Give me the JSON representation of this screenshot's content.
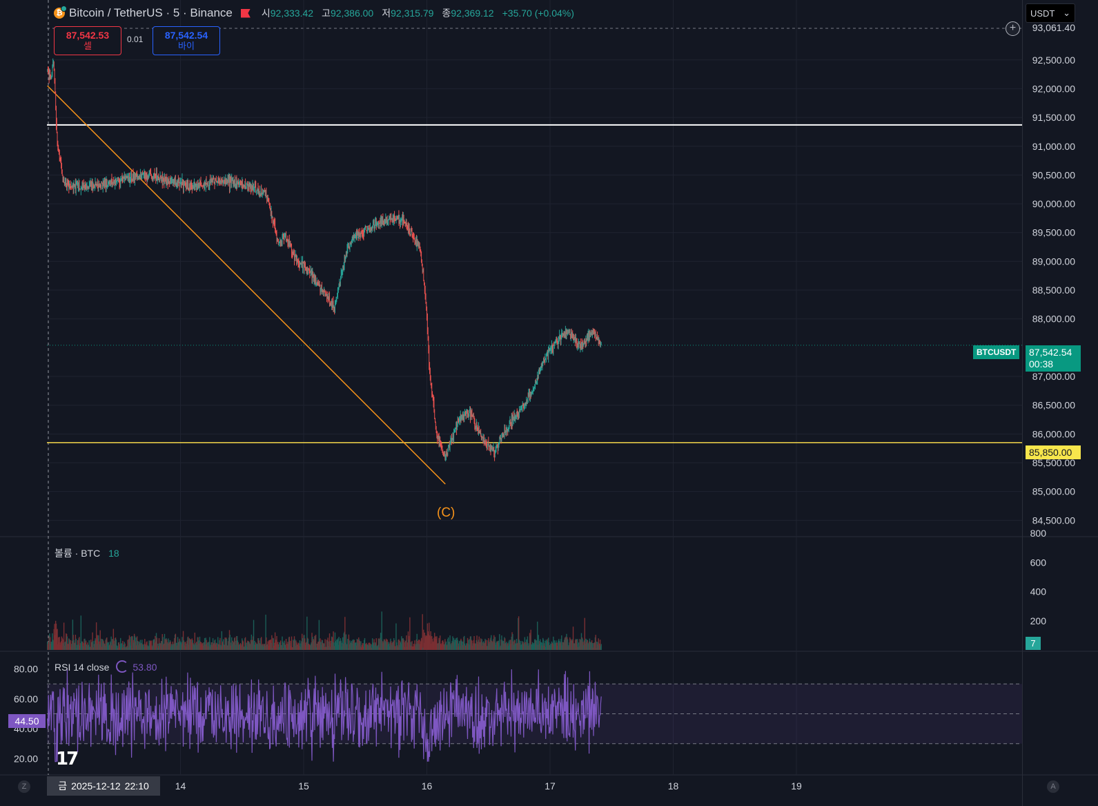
{
  "header": {
    "symbol": "Bitcoin / TetherUS · 5 · Binance",
    "open_label": "시",
    "open": "92,333.42",
    "high_label": "고",
    "high": "92,386.00",
    "low_label": "저",
    "low": "92,315.79",
    "close_label": "종",
    "close": "92,369.12",
    "change": "+35.70 (+0.04%)"
  },
  "trade": {
    "sell_price": "87,542.53",
    "sell_label": "셀",
    "buy_price": "87,542.54",
    "buy_label": "바이",
    "spread": "0.01"
  },
  "currency_selector": "USDT",
  "price_axis": {
    "top_label": "93,061.40",
    "ticks": [
      92500,
      92000,
      91500,
      91000,
      90500,
      90000,
      89500,
      89000,
      88500,
      88000,
      87000,
      86500,
      86000,
      85500,
      85000,
      84500
    ],
    "tick_labels": [
      "92,500.00",
      "92,000.00",
      "91,500.00",
      "91,000.00",
      "90,500.00",
      "90,000.00",
      "89,500.00",
      "89,000.00",
      "88,500.00",
      "88,000.00",
      "87,000.00",
      "86,500.00",
      "86,000.00",
      "85,500.00",
      "85,000.00",
      "84,500.00"
    ]
  },
  "last_price": {
    "symbol": "BTCUSDT",
    "price": "87,542.54",
    "countdown": "00:38",
    "value": 87542.54,
    "color": "#089981"
  },
  "horizontal_lines": [
    {
      "price": 91370,
      "color": "#ffffff"
    },
    {
      "price": 85850,
      "label": "85,850.00",
      "color": "#f7d94c"
    }
  ],
  "annotation": {
    "label": "(C)",
    "color": "#f7931a"
  },
  "volume": {
    "title": "볼륨 · BTC",
    "value": "18",
    "ticks": [
      800,
      600,
      400,
      200
    ],
    "tick_labels": [
      "800",
      "600",
      "400",
      "200"
    ],
    "current_label": "7"
  },
  "rsi": {
    "title": "RSI 14 close",
    "value": "53.80",
    "ticks": [
      80,
      60,
      40,
      20
    ],
    "tick_labels": [
      "80.00",
      "60.00",
      "40.00",
      "20.00"
    ],
    "current_label": "44.50",
    "band": [
      30,
      70
    ],
    "mid": 50,
    "color": "#7e57c2"
  },
  "time_axis": {
    "badge_day": "금",
    "badge_date": "2025-12-12",
    "badge_time": "22:10",
    "labels": [
      "14",
      "15",
      "16",
      "17",
      "18",
      "19"
    ]
  },
  "corners": {
    "left": "Z",
    "right": "A"
  },
  "chart_data": {
    "type": "candlestick",
    "symbol": "BTCUSDT",
    "interval": "5",
    "price_ylim": [
      84300,
      93061.4
    ],
    "price_series": {
      "x_days": [
        12.92,
        12.95,
        12.97,
        13.0,
        13.05,
        13.1,
        13.3,
        13.5,
        13.7,
        13.9,
        14.1,
        14.3,
        14.5,
        14.7,
        14.8,
        14.85,
        14.95,
        15.05,
        15.15,
        15.25,
        15.35,
        15.4,
        15.5,
        15.65,
        15.8,
        15.95,
        16.0,
        16.02,
        16.08,
        16.15,
        16.25,
        16.35,
        16.45,
        16.55,
        16.65,
        16.75,
        16.85,
        16.95,
        17.05,
        17.15,
        17.25,
        17.35,
        17.42
      ],
      "close": [
        92300,
        92200,
        92500,
        91000,
        90400,
        90300,
        90300,
        90400,
        90500,
        90400,
        90300,
        90400,
        90350,
        90150,
        89300,
        89450,
        89000,
        88800,
        88500,
        88200,
        89200,
        89400,
        89550,
        89700,
        89750,
        89200,
        88100,
        87100,
        86000,
        85600,
        86200,
        86400,
        85900,
        85700,
        86100,
        86400,
        86700,
        87300,
        87600,
        87800,
        87500,
        87800,
        87550
      ]
    },
    "volume_ylim": [
      0,
      800
    ],
    "rsi_ylim": [
      10,
      90
    ],
    "trendline": {
      "from": {
        "x_day": 12.92,
        "price": 92050
      },
      "to": {
        "x_day": 16.15,
        "price": 85130
      }
    }
  }
}
